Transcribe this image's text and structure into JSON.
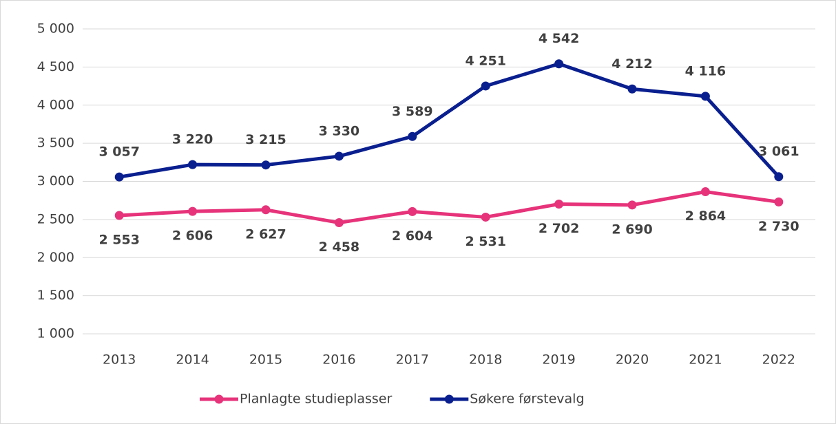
{
  "chart_data": {
    "type": "line",
    "categories": [
      "2013",
      "2014",
      "2015",
      "2016",
      "2017",
      "2018",
      "2019",
      "2020",
      "2021",
      "2022"
    ],
    "series": [
      {
        "name": "Planlagte studieplasser",
        "color": "#e6337a",
        "values": [
          2553,
          2606,
          2627,
          2458,
          2604,
          2531,
          2702,
          2690,
          2864,
          2730
        ],
        "value_labels": [
          "2 553",
          "2 606",
          "2 627",
          "2 458",
          "2 604",
          "2 531",
          "2 702",
          "2 690",
          "2 864",
          "2 730"
        ]
      },
      {
        "name": "Søkere førstevalg",
        "color": "#0a1f8f",
        "values": [
          3057,
          3220,
          3215,
          3330,
          3589,
          4251,
          4542,
          4212,
          4116,
          3061
        ],
        "value_labels": [
          "3 057",
          "3 220",
          "3 215",
          "3 330",
          "3 589",
          "4 251",
          "4 542",
          "4 212",
          "4 116",
          "3 061"
        ]
      }
    ],
    "ylim": [
      1000,
      5000
    ],
    "yticks": [
      {
        "value": 1000,
        "label": "1 000"
      },
      {
        "value": 1500,
        "label": "1 500"
      },
      {
        "value": 2000,
        "label": "2 000"
      },
      {
        "value": 2500,
        "label": "2 500"
      },
      {
        "value": 3000,
        "label": "3 000"
      },
      {
        "value": 3500,
        "label": "3 500"
      },
      {
        "value": 4000,
        "label": "4 000"
      },
      {
        "value": 4500,
        "label": "4 500"
      },
      {
        "value": 5000,
        "label": "5 000"
      }
    ],
    "grid": true,
    "legend": "bottom"
  }
}
